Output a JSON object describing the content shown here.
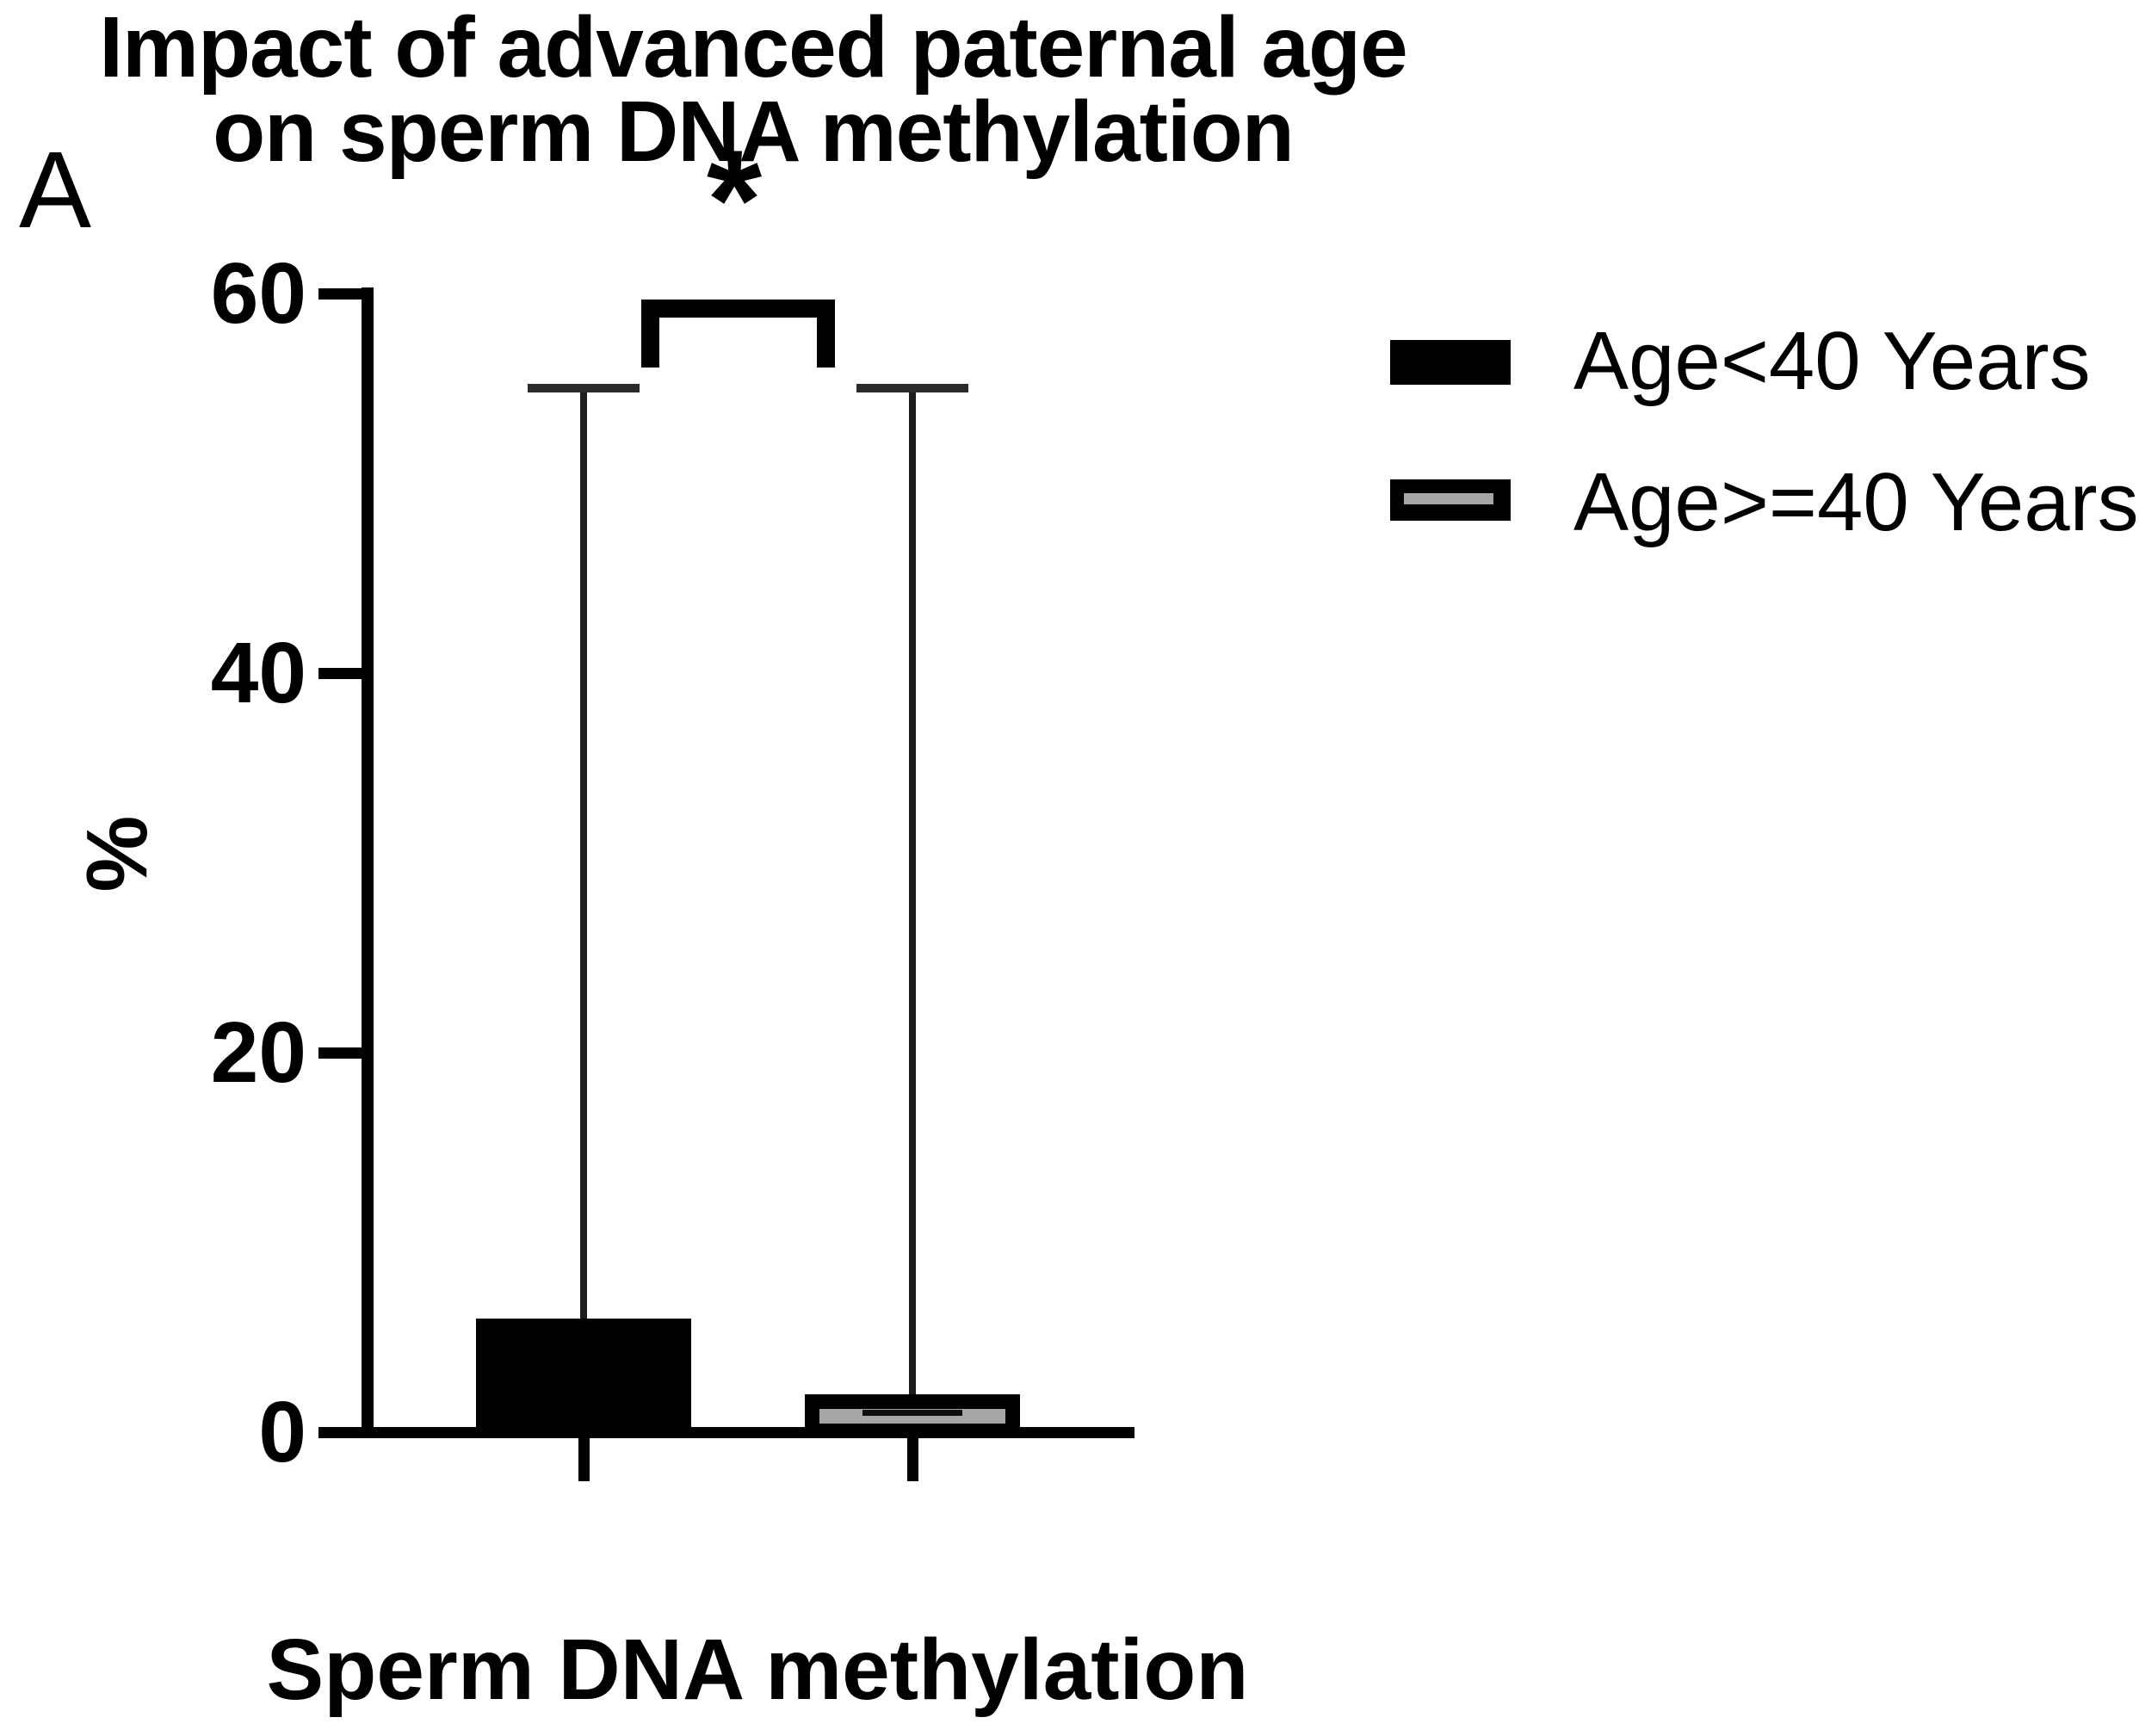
{
  "panel_label": "A",
  "title": {
    "line1": "Impact of advanced paternal age",
    "line2": "on sperm DNA methylation"
  },
  "significance": {
    "label": "*",
    "between": [
      "Age<40 Years",
      "Age>=40 Years"
    ]
  },
  "axes": {
    "y_label": "%",
    "x_label": "Sperm DNA methylation"
  },
  "legend": {
    "items": [
      {
        "label": "Age<40 Years",
        "fill": "#000000",
        "stripe": null
      },
      {
        "label": "Age>=40 Years",
        "fill": "#000000",
        "stripe": "#a6a6a6"
      }
    ]
  },
  "colors": {
    "bar_lt40": "#000000",
    "bar_gte40_fill": "#a6a6a6",
    "bar_gte40_border": "#000000",
    "axis": "#000000"
  },
  "chart_data": {
    "type": "bar",
    "title": "Impact of advanced paternal age on sperm DNA methylation",
    "panel": "A",
    "categories": [
      "Sperm DNA methylation"
    ],
    "series": [
      {
        "name": "Age<40 Years",
        "values": [
          6
        ],
        "error_top": [
          55
        ],
        "fill": "#000000",
        "style": "solid"
      },
      {
        "name": "Age>=40 Years",
        "values": [
          2
        ],
        "error_top": [
          55
        ],
        "fill": "#a6a6a6",
        "style": "outlined"
      }
    ],
    "ylabel": "%",
    "xlabel": "Sperm DNA methylation",
    "ylim": [
      0,
      60
    ],
    "yticks": [
      0,
      20,
      40,
      60
    ],
    "grid": false,
    "legend_position": "right",
    "annotations": [
      {
        "type": "significance-bracket",
        "label": "*",
        "between": [
          "Age<40 Years",
          "Age>=40 Years"
        ]
      }
    ]
  }
}
